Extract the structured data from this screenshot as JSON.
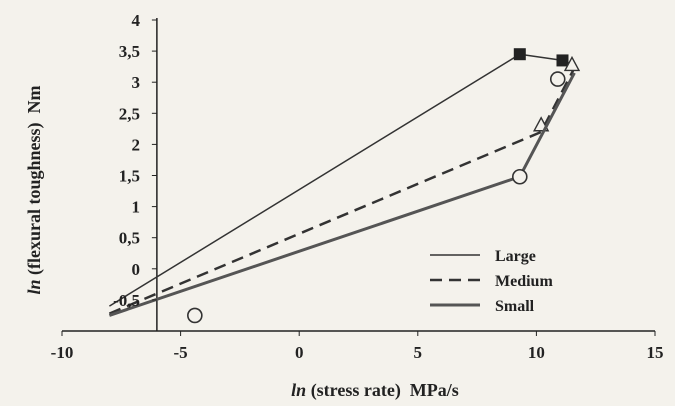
{
  "chart_data": {
    "type": "line",
    "xlabel_italic": "ln",
    "xlabel_rest": " (stress rate)  MPa/s",
    "ylabel_italic": "ln",
    "ylabel_rest": " (flexural toughness)  Nm",
    "xlim": [
      -10,
      15
    ],
    "ylim": [
      -1,
      4
    ],
    "x_ticks": [
      -10,
      -5,
      0,
      5,
      10,
      15
    ],
    "x_tick_labels": [
      "-10",
      "-5",
      "0",
      "5",
      "10",
      "15"
    ],
    "y_ticks": [
      4,
      3.5,
      3,
      2.5,
      2,
      1.5,
      1,
      0.5,
      0,
      -0.5
    ],
    "y_tick_labels": [
      "4",
      "3,5",
      "3",
      "2,5",
      "2",
      "1,5",
      "1",
      "0,5",
      "0",
      "-0,5"
    ],
    "y_axis_at_x": -6,
    "legend_position": "bottom-right",
    "series": [
      {
        "name": "Large",
        "style": "thin-solid",
        "color": "#333333",
        "line": [
          [
            -8,
            -0.6
          ],
          [
            9.3,
            3.45
          ],
          [
            11.1,
            3.35
          ],
          [
            11.7,
            3.22
          ]
        ],
        "markers": [
          {
            "x": 9.3,
            "y": 3.45,
            "shape": "filled-square"
          },
          {
            "x": 11.1,
            "y": 3.35,
            "shape": "filled-square"
          }
        ]
      },
      {
        "name": "Medium",
        "style": "dashed",
        "color": "#333333",
        "line": [
          [
            -8,
            -0.72
          ],
          [
            10.2,
            2.2
          ],
          [
            11.7,
            3.3
          ]
        ],
        "markers": [
          {
            "x": 10.2,
            "y": 2.3,
            "shape": "open-triangle"
          },
          {
            "x": 11.5,
            "y": 3.27,
            "shape": "open-triangle"
          }
        ]
      },
      {
        "name": "Small",
        "style": "thick-solid",
        "color": "#555555",
        "line": [
          [
            -8,
            -0.75
          ],
          [
            9.3,
            1.48
          ],
          [
            11.6,
            3.15
          ]
        ],
        "markers": [
          {
            "x": 9.3,
            "y": 1.48,
            "shape": "open-circle"
          },
          {
            "x": 10.9,
            "y": 3.05,
            "shape": "open-circle"
          },
          {
            "x": -4.4,
            "y": -0.75,
            "shape": "open-circle"
          }
        ]
      }
    ]
  }
}
